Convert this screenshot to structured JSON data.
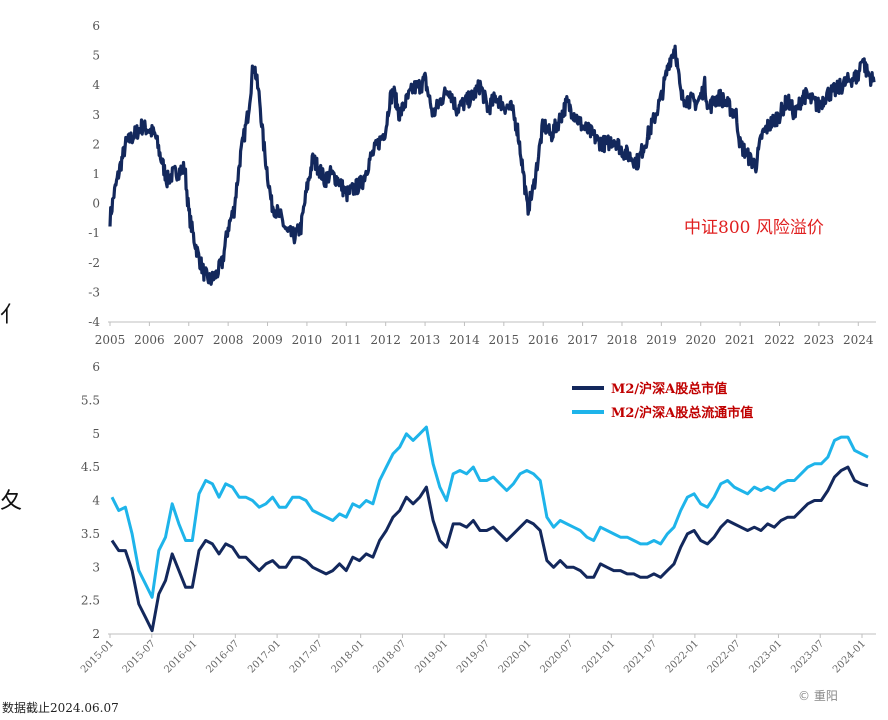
{
  "chart_data": [
    {
      "type": "line",
      "title": "",
      "annotation": "中证800 风险溢价",
      "ylim": [
        -4,
        6
      ],
      "yticks": [
        "6",
        "5",
        "4",
        "3",
        "2",
        "1",
        "0",
        "-1",
        "-2",
        "-3",
        "-4"
      ],
      "x_years": [
        "2005",
        "2006",
        "2007",
        "2008",
        "2009",
        "2010",
        "2011",
        "2012",
        "2013",
        "2014",
        "2015",
        "2016",
        "2017",
        "2018",
        "2019",
        "2020",
        "2021",
        "2022",
        "2023",
        "2024"
      ],
      "grid": false,
      "series": [
        {
          "color": "#13285c",
          "x": [
            2005.0,
            2005.1,
            2005.25,
            2005.4,
            2005.6,
            2005.8,
            2006.0,
            2006.15,
            2006.3,
            2006.45,
            2006.6,
            2006.75,
            2006.9,
            2007.0,
            2007.1,
            2007.25,
            2007.4,
            2007.55,
            2007.7,
            2007.85,
            2008.0,
            2008.15,
            2008.3,
            2008.5,
            2008.65,
            2008.8,
            2008.9,
            2009.0,
            2009.1,
            2009.2,
            2009.35,
            2009.5,
            2009.7,
            2009.85,
            2010.0,
            2010.15,
            2010.3,
            2010.45,
            2010.6,
            2010.8,
            2011.0,
            2011.2,
            2011.4,
            2011.6,
            2011.8,
            2012.0,
            2012.1,
            2012.2,
            2012.35,
            2012.5,
            2012.7,
            2012.9,
            2013.0,
            2013.2,
            2013.4,
            2013.6,
            2013.8,
            2014.0,
            2014.2,
            2014.4,
            2014.6,
            2014.8,
            2015.0,
            2015.2,
            2015.35,
            2015.5,
            2015.6,
            2015.75,
            2015.9,
            2016.0,
            2016.2,
            2016.4,
            2016.6,
            2016.8,
            2017.0,
            2017.2,
            2017.4,
            2017.6,
            2017.8,
            2018.0,
            2018.2,
            2018.4,
            2018.6,
            2018.8,
            2019.0,
            2019.1,
            2019.2,
            2019.35,
            2019.5,
            2019.7,
            2019.9,
            2020.0,
            2020.1,
            2020.2,
            2020.35,
            2020.5,
            2020.7,
            2020.9,
            2021.0,
            2021.1,
            2021.25,
            2021.4,
            2021.55,
            2021.7,
            2021.85,
            2022.0,
            2022.2,
            2022.4,
            2022.6,
            2022.8,
            2023.0,
            2023.2,
            2023.4,
            2023.6,
            2023.8,
            2024.0,
            2024.1,
            2024.2,
            2024.3,
            2024.4
          ],
          "values": [
            -0.5,
            0.3,
            1.2,
            2.0,
            2.3,
            2.6,
            2.5,
            2.3,
            1.5,
            0.8,
            1.0,
            1.1,
            1.2,
            -0.3,
            -1.0,
            -1.8,
            -2.4,
            -2.6,
            -2.4,
            -2.0,
            -0.8,
            -0.2,
            1.5,
            3.0,
            4.8,
            3.5,
            2.0,
            1.0,
            0.0,
            -0.2,
            -0.5,
            -1.0,
            -1.1,
            -0.8,
            0.5,
            1.5,
            1.2,
            0.8,
            1.0,
            0.8,
            0.3,
            0.5,
            0.7,
            1.5,
            2.0,
            2.5,
            3.5,
            3.8,
            3.0,
            3.4,
            3.9,
            4.0,
            4.2,
            3.0,
            3.5,
            3.9,
            3.2,
            3.4,
            3.6,
            4.0,
            3.2,
            3.6,
            3.3,
            3.2,
            2.5,
            1.0,
            -0.2,
            0.5,
            1.8,
            2.7,
            2.3,
            2.8,
            3.4,
            3.0,
            2.6,
            2.4,
            2.1,
            2.0,
            2.2,
            1.8,
            1.6,
            1.4,
            2.1,
            2.8,
            3.6,
            4.2,
            4.8,
            5.3,
            3.6,
            3.5,
            3.4,
            3.6,
            4.0,
            3.2,
            3.5,
            3.6,
            3.3,
            3.0,
            2.0,
            1.8,
            1.5,
            1.3,
            2.3,
            2.6,
            2.8,
            3.0,
            3.5,
            3.0,
            3.7,
            3.5,
            3.3,
            3.7,
            3.8,
            4.0,
            4.2,
            4.3,
            5.0,
            4.5,
            4.3,
            4.1
          ]
        }
      ]
    },
    {
      "type": "line",
      "title": "",
      "ylim": [
        2,
        6
      ],
      "yticks": [
        "6",
        "5.5",
        "5",
        "4.5",
        "4",
        "3.5",
        "3",
        "2.5",
        "2"
      ],
      "x_tick_labels": [
        "2015-01",
        "2015-07",
        "2016-01",
        "2016-07",
        "2017-01",
        "2017-07",
        "2018-01",
        "2018-07",
        "2019-01",
        "2019-07",
        "2020-01",
        "2020-07",
        "2021-01",
        "2021-07",
        "2022-01",
        "2022-07",
        "2023-01",
        "2023-07",
        "2024-01"
      ],
      "legend_position": "top-right",
      "grid": false,
      "series": [
        {
          "name": "M2/沪深A股总市值",
          "color": "#13285c",
          "x": [
            0,
            1,
            2,
            3,
            4,
            5,
            6,
            7,
            8,
            9,
            10,
            11,
            12,
            13,
            14,
            15,
            16,
            17,
            18,
            19,
            20,
            21,
            22,
            23,
            24,
            25,
            26,
            27,
            28,
            29,
            30,
            31,
            32,
            33,
            34,
            35,
            36,
            37,
            38,
            39,
            40,
            41,
            42,
            43,
            44,
            45,
            46,
            47,
            48,
            49,
            50,
            51,
            52,
            53,
            54,
            55,
            56,
            57,
            58,
            59,
            60,
            61,
            62,
            63,
            64,
            65,
            66,
            67,
            68,
            69,
            70,
            71,
            72,
            73,
            74,
            75,
            76,
            77,
            78,
            79,
            80,
            81,
            82,
            83,
            84,
            85,
            86,
            87,
            88,
            89,
            90,
            91,
            92,
            93,
            94,
            95,
            96,
            97,
            98,
            99,
            100,
            101,
            102,
            103,
            104,
            105,
            106,
            107,
            108,
            109,
            110,
            111,
            112,
            113
          ],
          "values": [
            3.4,
            3.25,
            3.25,
            2.95,
            2.45,
            2.25,
            2.05,
            2.6,
            2.8,
            3.2,
            2.95,
            2.7,
            2.7,
            3.25,
            3.4,
            3.35,
            3.2,
            3.35,
            3.3,
            3.15,
            3.15,
            3.05,
            2.95,
            3.05,
            3.1,
            3.0,
            3.0,
            3.15,
            3.15,
            3.1,
            3.0,
            2.95,
            2.9,
            2.95,
            3.05,
            2.95,
            3.15,
            3.1,
            3.2,
            3.15,
            3.4,
            3.55,
            3.75,
            3.85,
            4.05,
            3.95,
            4.05,
            4.2,
            3.7,
            3.4,
            3.3,
            3.65,
            3.65,
            3.6,
            3.7,
            3.55,
            3.55,
            3.6,
            3.5,
            3.4,
            3.5,
            3.6,
            3.7,
            3.65,
            3.55,
            3.1,
            3.0,
            3.1,
            3.0,
            3.0,
            2.95,
            2.85,
            2.85,
            3.05,
            3.0,
            2.95,
            2.95,
            2.9,
            2.9,
            2.85,
            2.85,
            2.9,
            2.85,
            2.95,
            3.05,
            3.3,
            3.5,
            3.55,
            3.4,
            3.35,
            3.45,
            3.6,
            3.7,
            3.65,
            3.6,
            3.55,
            3.6,
            3.55,
            3.65,
            3.6,
            3.7,
            3.75,
            3.75,
            3.85,
            3.95,
            4.0,
            4.0,
            4.15,
            4.35,
            4.45,
            4.5,
            4.3,
            4.25,
            4.22
          ]
        },
        {
          "name": "M2/沪深A股总流通市值",
          "color": "#1eb4ea",
          "x": [
            0,
            1,
            2,
            3,
            4,
            5,
            6,
            7,
            8,
            9,
            10,
            11,
            12,
            13,
            14,
            15,
            16,
            17,
            18,
            19,
            20,
            21,
            22,
            23,
            24,
            25,
            26,
            27,
            28,
            29,
            30,
            31,
            32,
            33,
            34,
            35,
            36,
            37,
            38,
            39,
            40,
            41,
            42,
            43,
            44,
            45,
            46,
            47,
            48,
            49,
            50,
            51,
            52,
            53,
            54,
            55,
            56,
            57,
            58,
            59,
            60,
            61,
            62,
            63,
            64,
            65,
            66,
            67,
            68,
            69,
            70,
            71,
            72,
            73,
            74,
            75,
            76,
            77,
            78,
            79,
            80,
            81,
            82,
            83,
            84,
            85,
            86,
            87,
            88,
            89,
            90,
            91,
            92,
            93,
            94,
            95,
            96,
            97,
            98,
            99,
            100,
            101,
            102,
            103,
            104,
            105,
            106,
            107,
            108,
            109,
            110,
            111,
            112,
            113
          ],
          "values": [
            4.05,
            3.85,
            3.9,
            3.5,
            2.95,
            2.75,
            2.55,
            3.25,
            3.45,
            3.95,
            3.65,
            3.4,
            3.4,
            4.1,
            4.3,
            4.25,
            4.05,
            4.25,
            4.2,
            4.05,
            4.05,
            4.0,
            3.9,
            3.95,
            4.05,
            3.9,
            3.9,
            4.05,
            4.05,
            4.0,
            3.85,
            3.8,
            3.75,
            3.7,
            3.8,
            3.75,
            3.95,
            3.9,
            4.0,
            3.95,
            4.3,
            4.5,
            4.7,
            4.8,
            5.0,
            4.9,
            5.0,
            5.1,
            4.55,
            4.2,
            4.0,
            4.4,
            4.45,
            4.4,
            4.5,
            4.3,
            4.3,
            4.35,
            4.25,
            4.15,
            4.25,
            4.4,
            4.45,
            4.4,
            4.3,
            3.75,
            3.6,
            3.7,
            3.65,
            3.6,
            3.55,
            3.45,
            3.4,
            3.6,
            3.55,
            3.5,
            3.45,
            3.45,
            3.4,
            3.35,
            3.35,
            3.4,
            3.35,
            3.5,
            3.6,
            3.85,
            4.05,
            4.1,
            3.95,
            3.9,
            4.05,
            4.25,
            4.3,
            4.2,
            4.15,
            4.1,
            4.2,
            4.15,
            4.2,
            4.15,
            4.25,
            4.3,
            4.3,
            4.4,
            4.5,
            4.55,
            4.55,
            4.65,
            4.9,
            4.95,
            4.95,
            4.75,
            4.7,
            4.65
          ]
        }
      ]
    }
  ],
  "footnote": "数据截止2024.06.07",
  "watermark": "© 重阳",
  "side_chars": [
    "亻",
    "夂"
  ]
}
